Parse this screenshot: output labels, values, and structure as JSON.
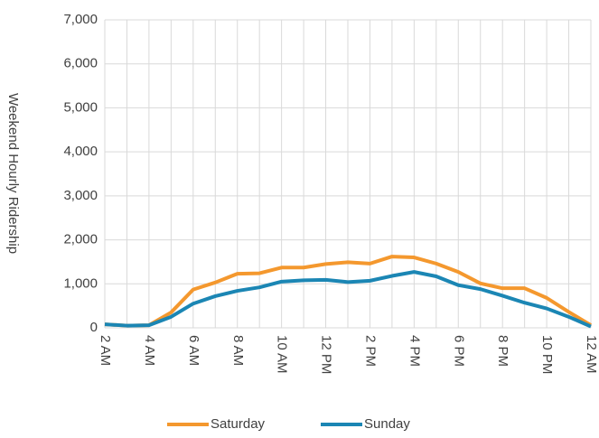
{
  "chart_data": {
    "type": "line",
    "y_label": "Weekend Hourly Ridership",
    "categories": [
      "2 AM",
      null,
      "4 AM",
      null,
      "6 AM",
      null,
      "8 AM",
      null,
      "10 AM",
      null,
      "12 PM",
      null,
      "2 PM",
      null,
      "4 PM",
      null,
      "6 PM",
      null,
      "8 PM",
      null,
      "10 PM",
      null,
      "12 AM"
    ],
    "series": [
      {
        "name": "Saturday",
        "color": "#f4982e",
        "values": [
          80,
          50,
          60,
          350,
          870,
          1030,
          1230,
          1240,
          1370,
          1370,
          1450,
          1490,
          1460,
          1620,
          1600,
          1460,
          1270,
          1010,
          900,
          900,
          680,
          360,
          60
        ]
      },
      {
        "name": "Sunday",
        "color": "#1b86b4",
        "values": [
          80,
          50,
          60,
          250,
          550,
          720,
          840,
          920,
          1050,
          1080,
          1090,
          1040,
          1070,
          1180,
          1270,
          1170,
          970,
          880,
          730,
          570,
          440,
          250,
          30
        ]
      }
    ],
    "ylim": [
      0,
      7000
    ],
    "yticks": [
      0,
      {
        "value": 1000,
        "label": "1,000"
      },
      {
        "value": 2000,
        "label": "2,000"
      },
      {
        "value": 3000,
        "label": "3,000"
      },
      {
        "value": 4000,
        "label": "4,000"
      },
      {
        "value": 5000,
        "label": "5,000"
      },
      {
        "value": 6000,
        "label": "6,000"
      },
      {
        "value": 7000,
        "label": "7,000"
      }
    ],
    "grid": true,
    "legend": "bottom"
  }
}
